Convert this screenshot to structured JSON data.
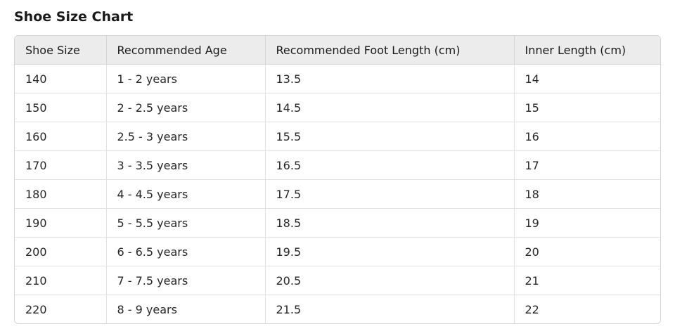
{
  "title": "Shoe Size Chart",
  "table": {
    "headers": [
      "Shoe Size",
      "Recommended Age",
      "Recommended Foot Length (cm)",
      "Inner Length (cm)"
    ],
    "rows": [
      [
        "140",
        "1 - 2 years",
        "13.5",
        "14"
      ],
      [
        "150",
        "2 - 2.5 years",
        "14.5",
        "15"
      ],
      [
        "160",
        "2.5 - 3 years",
        "15.5",
        "16"
      ],
      [
        "170",
        "3 - 3.5 years",
        "16.5",
        "17"
      ],
      [
        "180",
        "4 - 4.5 years",
        "17.5",
        "18"
      ],
      [
        "190",
        "5 - 5.5 years",
        "18.5",
        "19"
      ],
      [
        "200",
        "6 - 6.5 years",
        "19.5",
        "20"
      ],
      [
        "210",
        "7 - 7.5 years",
        "20.5",
        "21"
      ],
      [
        "220",
        "8 - 9 years",
        "21.5",
        "22"
      ]
    ]
  }
}
